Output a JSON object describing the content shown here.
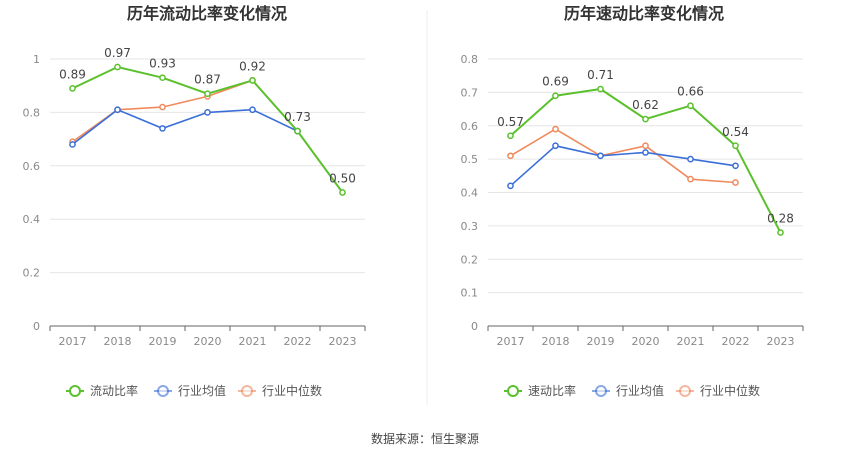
{
  "source_text": "数据来源：恒生聚源",
  "colors": {
    "main": "#5ac12c",
    "avg": "#3a6fd8",
    "median": "#f08a5d"
  },
  "chart_data": [
    {
      "type": "line",
      "title": "历年流动比率变化情况",
      "x": [
        "2017",
        "2018",
        "2019",
        "2020",
        "2021",
        "2022",
        "2023"
      ],
      "ylim": [
        0,
        1.0
      ],
      "yticks": [
        "0",
        "0.2",
        "0.4",
        "0.6",
        "0.8",
        "1"
      ],
      "ytick_values": [
        0,
        0.2,
        0.4,
        0.6,
        0.8,
        1.0
      ],
      "grid": true,
      "legend_position": "bottom",
      "series": [
        {
          "name": "流动比率",
          "color": "#5ac12c",
          "values": [
            0.89,
            0.97,
            0.93,
            0.87,
            0.92,
            0.73,
            0.5
          ],
          "labels": [
            "0.89",
            "0.97",
            "0.93",
            "0.87",
            "0.92",
            "0.73",
            "0.50"
          ]
        },
        {
          "name": "行业均值",
          "color": "#3a6fd8",
          "values": [
            0.68,
            0.81,
            0.74,
            0.8,
            0.81,
            0.73,
            null
          ]
        },
        {
          "name": "行业中位数",
          "color": "#f08a5d",
          "values": [
            0.69,
            0.81,
            0.82,
            0.86,
            0.92,
            0.73,
            null
          ]
        }
      ]
    },
    {
      "type": "line",
      "title": "历年速动比率变化情况",
      "x": [
        "2017",
        "2018",
        "2019",
        "2020",
        "2021",
        "2022",
        "2023"
      ],
      "ylim": [
        0,
        0.8
      ],
      "yticks": [
        "0",
        "0.1",
        "0.2",
        "0.3",
        "0.4",
        "0.5",
        "0.6",
        "0.7",
        "0.8"
      ],
      "ytick_values": [
        0,
        0.1,
        0.2,
        0.3,
        0.4,
        0.5,
        0.6,
        0.7,
        0.8
      ],
      "grid": true,
      "legend_position": "bottom",
      "series": [
        {
          "name": "速动比率",
          "color": "#5ac12c",
          "values": [
            0.57,
            0.69,
            0.71,
            0.62,
            0.66,
            0.54,
            0.28
          ],
          "labels": [
            "0.57",
            "0.69",
            "0.71",
            "0.62",
            "0.66",
            "0.54",
            "0.28"
          ]
        },
        {
          "name": "行业均值",
          "color": "#3a6fd8",
          "values": [
            0.42,
            0.54,
            0.51,
            0.52,
            0.5,
            0.48,
            null
          ]
        },
        {
          "name": "行业中位数",
          "color": "#f08a5d",
          "values": [
            0.51,
            0.59,
            0.51,
            0.54,
            0.44,
            0.43,
            null
          ]
        }
      ]
    }
  ]
}
